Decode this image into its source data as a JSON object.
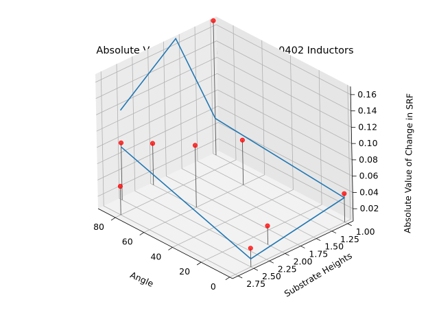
{
  "chart_data": {
    "type": "3d-line-scatter",
    "title": "Absolute Value of Change in SRF for 0402 Inductors",
    "xlabel": "Angle",
    "ylabel": "Substrate Heights",
    "zlabel": "Absolute Value of Change in SRF",
    "xlim": [
      -2,
      92
    ],
    "ylim": [
      0.91,
      2.84
    ],
    "zlim": [
      0.005,
      0.17
    ],
    "x_ticks": [
      "0",
      "20",
      "40",
      "60",
      "80"
    ],
    "x_tick_values": [
      0,
      20,
      40,
      60,
      80
    ],
    "y_ticks": [
      "1.00",
      "1.25",
      "1.50",
      "1.75",
      "2.00",
      "2.25",
      "2.50",
      "2.75"
    ],
    "y_tick_values": [
      1.0,
      1.25,
      1.5,
      1.75,
      2.0,
      2.25,
      2.5,
      2.75
    ],
    "z_ticks": [
      "0.02",
      "0.04",
      "0.06",
      "0.08",
      "0.10",
      "0.12",
      "0.14",
      "0.16"
    ],
    "z_tick_values": [
      0.02,
      0.04,
      0.06,
      0.08,
      0.1,
      0.12,
      0.14,
      0.16
    ],
    "line": {
      "color": "#1f77b4",
      "points": [
        {
          "x": 90,
          "y": 2.5,
          "z": 0.07
        },
        {
          "x": 0,
          "y": 2.5,
          "z": 0.015
        },
        {
          "x": 0,
          "y": 1.0,
          "z": 0.035
        },
        {
          "x": 90,
          "y": 1.0,
          "z": 0.05
        },
        {
          "x": 90,
          "y": 1.6,
          "z": 0.17
        },
        {
          "x": 90,
          "y": 2.5,
          "z": 0.115
        }
      ]
    },
    "scatter": {
      "color": "#ff0000",
      "points": [
        {
          "x": 90,
          "y": 2.5,
          "z": 0.075
        },
        {
          "x": 80,
          "y": 2.75,
          "z": 0.04
        },
        {
          "x": 90,
          "y": 1.0,
          "z": 0.17
        },
        {
          "x": 90,
          "y": 2.0,
          "z": 0.056
        },
        {
          "x": 60,
          "y": 2.0,
          "z": 0.081
        },
        {
          "x": 60,
          "y": 1.25,
          "z": 0.06
        },
        {
          "x": 0,
          "y": 2.5,
          "z": 0.028
        },
        {
          "x": 0,
          "y": 1.0,
          "z": 0.04
        },
        {
          "x": 10,
          "y": 2.0,
          "z": 0.028
        }
      ]
    },
    "grid": true,
    "view": {
      "elev": 30,
      "azim": -60
    }
  }
}
